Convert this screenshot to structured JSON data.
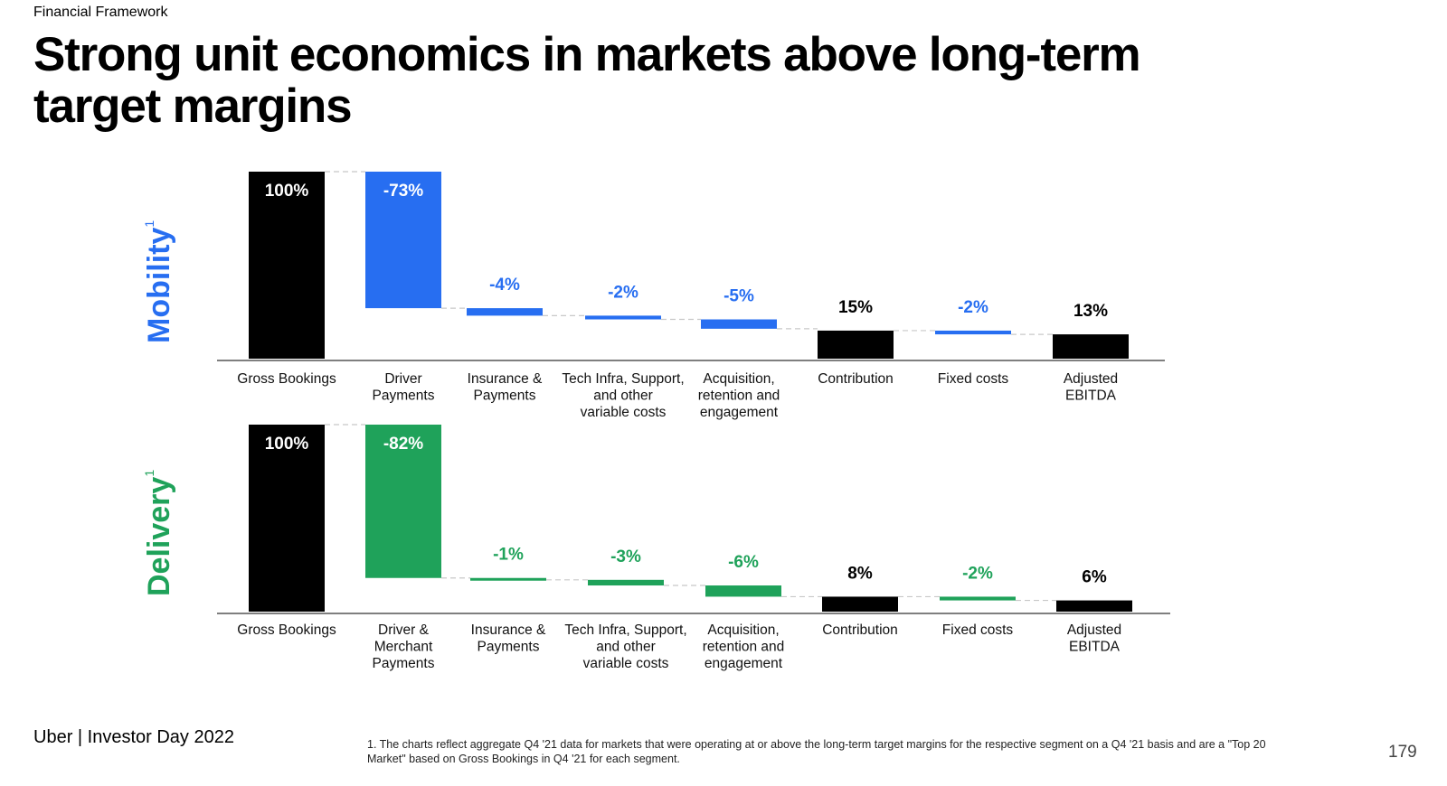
{
  "header": {
    "section": "Financial Framework",
    "title": "Strong unit economics in markets above long-term target margins"
  },
  "colors": {
    "black": "#000000",
    "mobility_blue": "#276EF1",
    "delivery_green": "#1FA25A",
    "connector": "#c8c8c8"
  },
  "chart_data": [
    {
      "type": "bar",
      "segment": "Mobility",
      "segment_footnote": "1",
      "waterfall": true,
      "categories": [
        "Gross Bookings",
        "Driver\nPayments",
        "Insurance &\nPayments",
        "Tech Infra, Support,\nand other\nvariable costs",
        "Acquisition,\nretention and\nengagement",
        "Contribution",
        "Fixed costs",
        "Adjusted\nEBITDA"
      ],
      "values": [
        100,
        -73,
        -4,
        -2,
        -5,
        15,
        -2,
        13
      ],
      "labels": [
        "100%",
        "-73%",
        "-4%",
        "-2%",
        "-5%",
        "15%",
        "-2%",
        "13%"
      ],
      "kinds": [
        "total",
        "delta",
        "delta",
        "delta",
        "delta",
        "total",
        "delta",
        "total"
      ],
      "accent": "#276EF1",
      "ylim": [
        0,
        100
      ]
    },
    {
      "type": "bar",
      "segment": "Delivery",
      "segment_footnote": "1",
      "waterfall": true,
      "categories": [
        "Gross Bookings",
        "Driver &\nMerchant\nPayments",
        "Insurance &\nPayments",
        "Tech Infra, Support,\nand other\nvariable costs",
        "Acquisition,\nretention and\nengagement",
        "Contribution",
        "Fixed costs",
        "Adjusted\nEBITDA"
      ],
      "values": [
        100,
        -82,
        -1,
        -3,
        -6,
        8,
        -2,
        6
      ],
      "labels": [
        "100%",
        "-82%",
        "-1%",
        "-3%",
        "-6%",
        "8%",
        "-2%",
        "6%"
      ],
      "kinds": [
        "total",
        "delta",
        "delta",
        "delta",
        "delta",
        "total",
        "delta",
        "total"
      ],
      "accent": "#1FA25A",
      "ylim": [
        0,
        100
      ]
    }
  ],
  "footer": {
    "brand": "Uber  |  Investor Day 2022",
    "footnote": "1. The charts reflect aggregate Q4 '21 data for markets that were operating at or above the long-term target margins for the respective segment on a Q4 '21 basis and are a \"Top 20 Market\" based on Gross Bookings in Q4 '21 for each segment.",
    "page_number": "179"
  }
}
